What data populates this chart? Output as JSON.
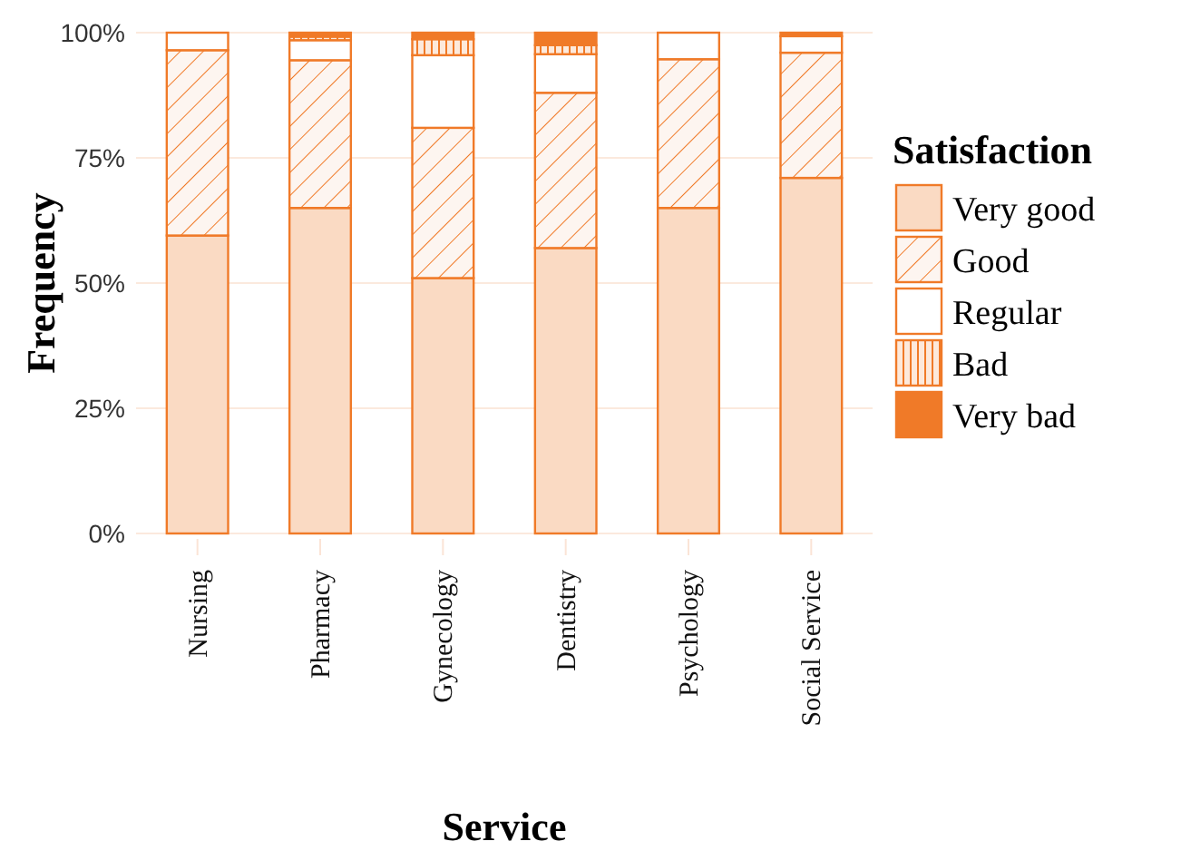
{
  "chart_data": {
    "type": "bar",
    "stacked": true,
    "xlabel": "Service",
    "ylabel": "Frequency",
    "legend_title": "Satisfaction",
    "legend": "right",
    "grid": "y",
    "categories": [
      "Nursing",
      "Pharmacy",
      "Gynecology",
      "Dentistry",
      "Psychology",
      "Social Service"
    ],
    "ylim": [
      0,
      100
    ],
    "yticks": [
      {
        "value": 0,
        "label": "0%"
      },
      {
        "value": 25,
        "label": "25%"
      },
      {
        "value": 50,
        "label": "50%"
      },
      {
        "value": 75,
        "label": "75%"
      },
      {
        "value": 100,
        "label": "100%"
      }
    ],
    "series": [
      {
        "name": "Very good",
        "color": "#fadac3",
        "values": [
          59.5,
          65,
          51,
          57,
          65,
          71
        ]
      },
      {
        "name": "Good",
        "color": "#fdf5f0",
        "values": [
          37,
          29.5,
          30,
          31,
          29.7,
          25
        ]
      },
      {
        "name": "Regular",
        "color": "#ffffff",
        "values": [
          3.5,
          4,
          14.5,
          7.7,
          5.3,
          3.3
        ]
      },
      {
        "name": "Bad",
        "color": "#fde9db",
        "values": [
          0,
          0.7,
          3.2,
          1.8,
          0,
          0
        ]
      },
      {
        "name": "Very bad",
        "color": "#f07a28",
        "values": [
          0,
          0.8,
          1.3,
          2.5,
          0,
          0.7
        ]
      }
    ]
  }
}
